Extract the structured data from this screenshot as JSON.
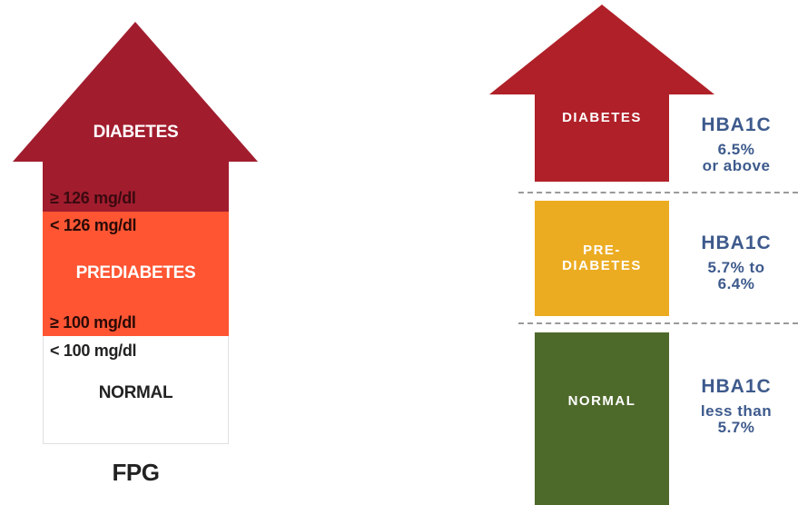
{
  "colors": {
    "fpg_diabetes": "#a11d2e",
    "fpg_prediabetes": "#ff5533",
    "fpg_normal": "#ffffff",
    "a1c_diabetes": "#b02028",
    "a1c_prediabetes": "#ecac22",
    "a1c_normal": "#4e6a2b",
    "a1c_label": "#3d5a8c"
  },
  "fpg": {
    "diabetes_label": "DIABETES",
    "diabetes_threshold": "≥ 126 mg/dl",
    "prediabetes_upper": "< 126 mg/dl",
    "prediabetes_label": "PREDIABETES",
    "prediabetes_lower": "≥ 100 mg/dl",
    "normal_threshold": "< 100 mg/dl",
    "normal_label": "NORMAL",
    "axis_label": "FPG"
  },
  "hba1c": {
    "diabetes": {
      "label_line1": "DIABETES",
      "test": "HBA1C",
      "value_line1": "6.5%",
      "value_line2": "or above"
    },
    "prediabetes": {
      "label_line1": "PRE-",
      "label_line2": "DIABETES",
      "test": "HBA1C",
      "value_line1": "5.7% to",
      "value_line2": "6.4%"
    },
    "normal": {
      "label_line1": "NORMAL",
      "test": "HBA1C",
      "value_line1": "less than",
      "value_line2": "5.7%"
    }
  }
}
